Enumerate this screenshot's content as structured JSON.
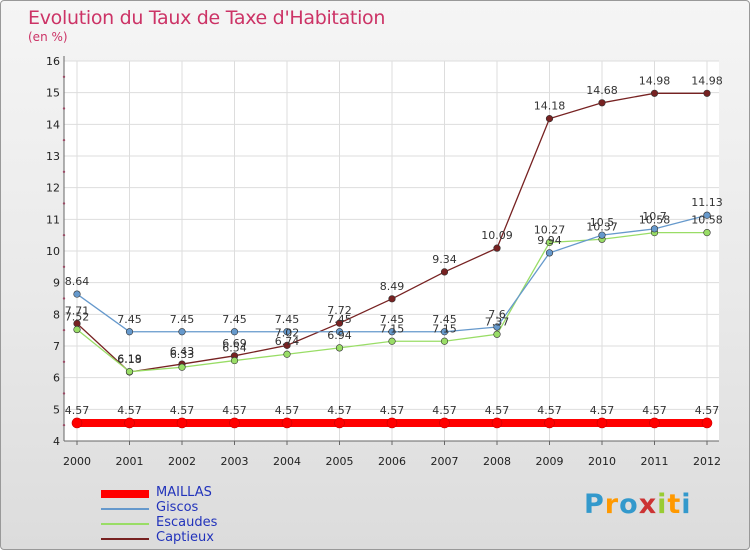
{
  "header": {
    "title": "Evolution du Taux de Taxe d'Habitation",
    "subtitle": "(en %)"
  },
  "logo": {
    "text": "Proxiti",
    "letters": [
      "P",
      "r",
      "o",
      "x",
      "i",
      "t",
      "i"
    ],
    "colors": [
      "#3399cc",
      "#ff9900",
      "#3399cc",
      "#cc3333",
      "#99cc33",
      "#ff9900",
      "#3399cc"
    ]
  },
  "chart_data": {
    "type": "line",
    "categories": [
      "2000",
      "2001",
      "2002",
      "2003",
      "2004",
      "2005",
      "2006",
      "2007",
      "2008",
      "2009",
      "2010",
      "2011",
      "2012"
    ],
    "ylim": [
      4,
      16
    ],
    "yticks": [
      "4",
      "5",
      "6",
      "7",
      "8",
      "9",
      "10",
      "11",
      "12",
      "13",
      "14",
      "15",
      "16"
    ],
    "grid": true,
    "legend_position": "bottom-left",
    "series": [
      {
        "name": "MAILLAS",
        "color": "#ff0000",
        "thick": true,
        "values": [
          4.57,
          4.57,
          4.57,
          4.57,
          4.57,
          4.57,
          4.57,
          4.57,
          4.57,
          4.57,
          4.57,
          4.57,
          4.57
        ],
        "labels": [
          "4.57",
          "4.57",
          "4.57",
          "4.57",
          "4.57",
          "4.57",
          "4.57",
          "4.57",
          "4.57",
          "4.57",
          "4.57",
          "4.57",
          "4.57"
        ]
      },
      {
        "name": "Giscos",
        "color": "#6699cc",
        "thick": false,
        "values": [
          8.64,
          7.45,
          7.45,
          7.45,
          7.45,
          7.45,
          7.45,
          7.45,
          7.6,
          9.94,
          10.5,
          10.7,
          11.13
        ],
        "labels": [
          "8.64",
          "7.45",
          "7.45",
          "7.45",
          "7.45",
          "7.45",
          "7.45",
          "7.45",
          "7.6",
          "9.94",
          "10.5",
          "10.7",
          "11.13"
        ]
      },
      {
        "name": "Escaudes",
        "color": "#99dd66",
        "thick": false,
        "values": [
          7.52,
          6.19,
          6.33,
          6.54,
          6.74,
          6.94,
          7.15,
          7.15,
          7.37,
          10.27,
          10.37,
          10.58,
          10.58
        ],
        "labels": [
          "7.52",
          "6.19",
          "6.33",
          "6.54",
          "6.74",
          "6.94",
          "7.15",
          "7.15",
          "7.37",
          "10.27",
          "10.37",
          "10.58",
          "10.58"
        ]
      },
      {
        "name": "Captieux",
        "color": "#772222",
        "thick": false,
        "values": [
          7.71,
          6.18,
          6.43,
          6.69,
          7.02,
          7.72,
          8.49,
          9.34,
          10.09,
          14.18,
          14.68,
          14.98,
          14.98
        ],
        "labels": [
          "7.71",
          "6.18",
          "6.43",
          "6.69",
          "7.02",
          "7.72",
          "8.49",
          "9.34",
          "10.09",
          "14.18",
          "14.68",
          "14.98",
          "14.98"
        ]
      }
    ]
  }
}
